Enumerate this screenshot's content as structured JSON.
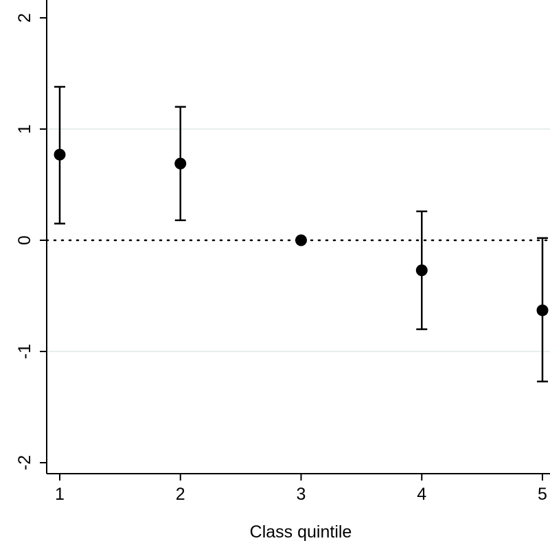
{
  "chart_data": {
    "type": "scatter",
    "title": "",
    "xlabel": "Class quintile",
    "ylabel": "",
    "x_ticks": [
      "1",
      "2",
      "3",
      "4",
      "5"
    ],
    "y_ticks": [
      "-2",
      "-1",
      "0",
      "1",
      "2"
    ],
    "xlim": [
      1,
      5
    ],
    "ylim": [
      -2.1,
      2.1
    ],
    "grid": "horizontal lines at -1 and 1",
    "reference_line": {
      "y": 0,
      "style": "dotted"
    },
    "points": [
      {
        "x": 1,
        "y": 0.77,
        "ci_low": 0.15,
        "ci_high": 1.38
      },
      {
        "x": 2,
        "y": 0.69,
        "ci_low": 0.18,
        "ci_high": 1.2
      },
      {
        "x": 3,
        "y": 0.0,
        "ci_low": null,
        "ci_high": null
      },
      {
        "x": 4,
        "y": -0.27,
        "ci_low": -0.8,
        "ci_high": 0.26
      },
      {
        "x": 5,
        "y": -0.63,
        "ci_low": -1.27,
        "ci_high": 0.02
      }
    ],
    "colors": {
      "marker": "#000000",
      "grid": "#e6efef",
      "axis": "#000000"
    }
  }
}
